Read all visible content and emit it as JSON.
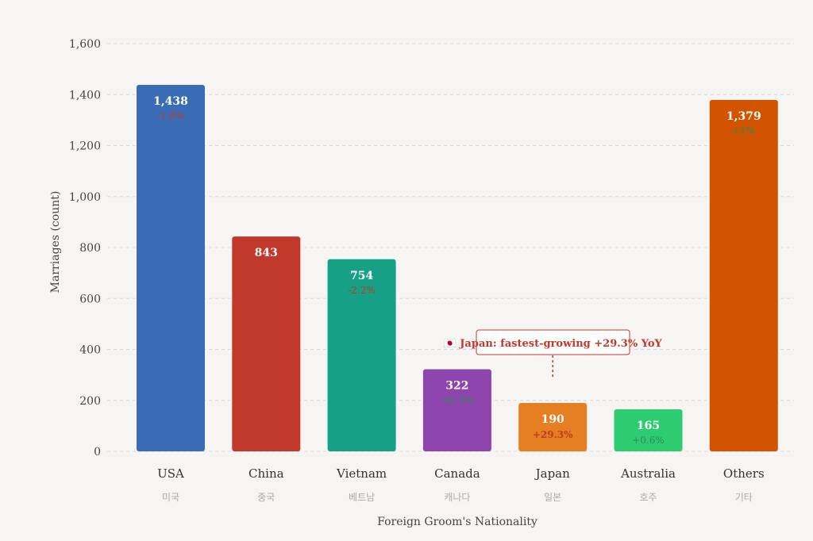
{
  "chart_data": {
    "type": "bar",
    "categories": [
      "USA",
      "China",
      "Vietnam",
      "Canada",
      "Japan",
      "Australia",
      "Others"
    ],
    "subcategories": [
      "미국",
      "중국",
      "베트남",
      "캐나다",
      "일본",
      "호주",
      "기타"
    ],
    "values": [
      1438,
      843,
      754,
      322,
      190,
      165,
      1379
    ],
    "value_labels": [
      "1,438",
      "843",
      "754",
      "322",
      "190",
      "165",
      "1,379"
    ],
    "changes": [
      "-1.8%",
      "",
      "-2.2%",
      "+6.3%",
      "+29.3%",
      "+0.6%",
      "+1%"
    ],
    "change_colors": [
      "#c0392b",
      "",
      "#c0392b",
      "#2e8b57",
      "#c0392b",
      "#2e8b57",
      "#2e8b57"
    ],
    "colors": [
      "#3a6cb5",
      "#c0392b",
      "#16a085",
      "#8e44ad",
      "#e67e22",
      "#2ecc71",
      "#d35400"
    ],
    "xlabel": "Foreign Groom's Nationality",
    "ylabel": "Marriages (count)",
    "ylim": [
      0,
      1600
    ],
    "yticks": [
      0,
      200,
      400,
      600,
      800,
      1000,
      1200,
      1400,
      1600
    ],
    "ytick_labels": [
      "0",
      "200",
      "400",
      "600",
      "800",
      "1,000",
      "1,200",
      "1,400",
      "1,600"
    ],
    "grid": "horizontal dashed",
    "annotation": {
      "text": "🇯🇵 Japan: fastest-growing +29.3% YoY",
      "target": "Japan",
      "color": "#c0392b"
    }
  }
}
